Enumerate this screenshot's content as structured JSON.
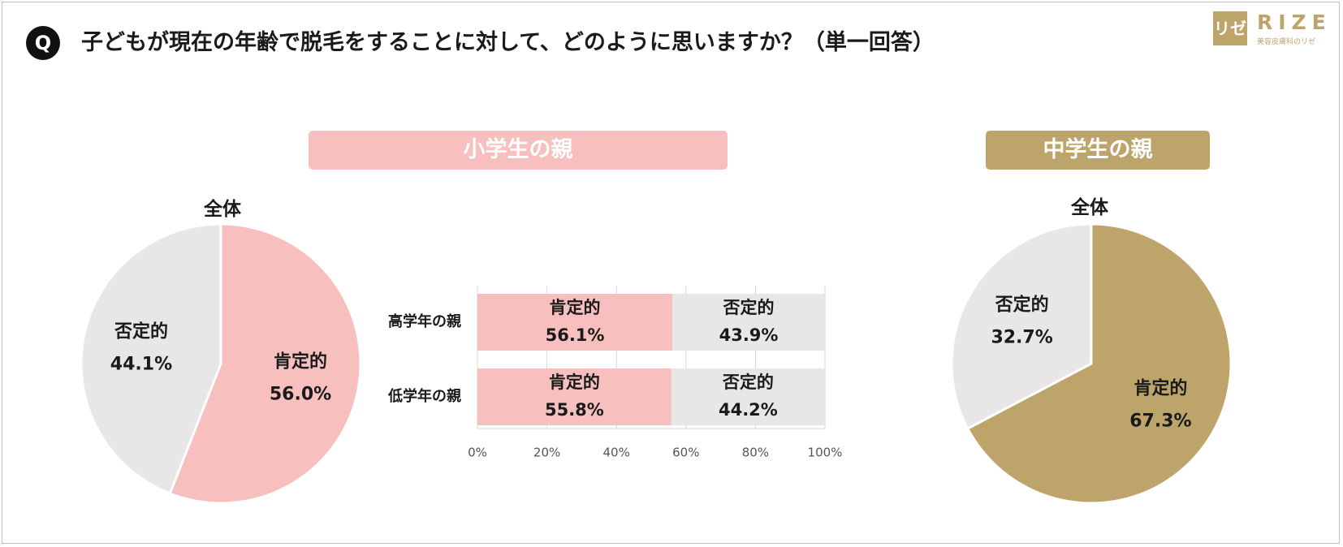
{
  "header": {
    "q_badge": "Q",
    "question": "子どもが現在の年齢で脱毛をすることに対して、どのように思いますか？（単一回答）"
  },
  "logo": {
    "mark": "リゼ",
    "name": "RIZE",
    "tagline": "美容皮膚科のリゼ"
  },
  "colors": {
    "positive_elementary": "#f7bfbe",
    "positive_junior": "#bda46b",
    "negative": "#e8e6e7"
  },
  "sections": {
    "elementary": "小学生の親",
    "junior_high": "中学生の親"
  },
  "chart_data": [
    {
      "type": "pie",
      "group": "小学生の親",
      "title": "全体",
      "slices": [
        {
          "label": "肯定的",
          "value": 56.0,
          "display": "56.0%"
        },
        {
          "label": "否定的",
          "value": 44.1,
          "display": "44.1%"
        }
      ]
    },
    {
      "type": "bar",
      "stacked": true,
      "orientation": "horizontal",
      "group": "小学生の親",
      "categories": [
        "高学年の親",
        "低学年の親"
      ],
      "series": [
        {
          "name": "肯定的",
          "values": [
            56.1,
            55.8
          ],
          "display": [
            "56.1%",
            "55.8%"
          ]
        },
        {
          "name": "否定的",
          "values": [
            43.9,
            44.2
          ],
          "display": [
            "43.9%",
            "44.2%"
          ]
        }
      ],
      "xlim": [
        0,
        100
      ],
      "xticks": [
        "0%",
        "20%",
        "40%",
        "60%",
        "80%",
        "100%"
      ],
      "grid": true
    },
    {
      "type": "pie",
      "group": "中学生の親",
      "title": "全体",
      "slices": [
        {
          "label": "肯定的",
          "value": 67.3,
          "display": "67.3%"
        },
        {
          "label": "否定的",
          "value": 32.7,
          "display": "32.7%"
        }
      ]
    }
  ]
}
